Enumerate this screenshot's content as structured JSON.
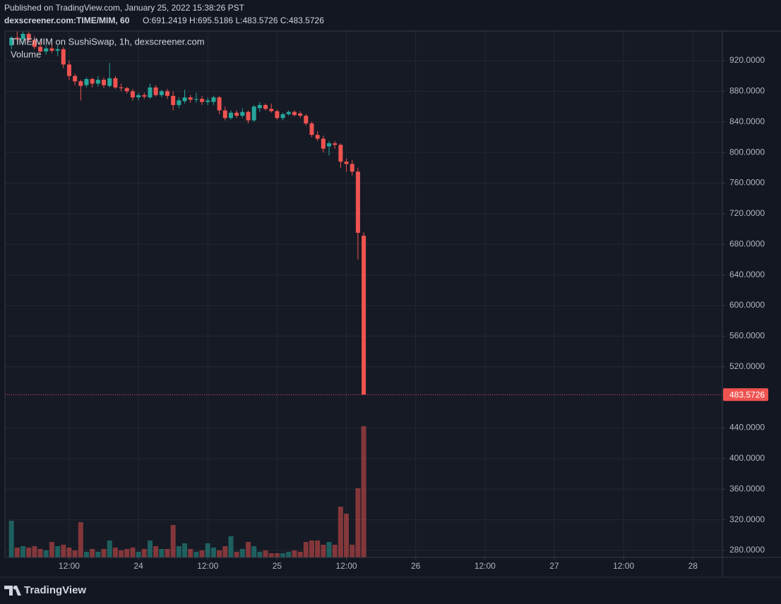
{
  "header": {
    "published": "Published on TradingView.com, January 25, 2022 15:38:26 PST",
    "symbol": "dexscreener.com:TIME/MIM, 60",
    "ohlc": "O:691.2419 H:695.5186 L:483.5726 C:483.5726"
  },
  "brand": "TradingView",
  "chart_data": {
    "type": "candlestick",
    "legend": [
      "TIME/MIM on SushiSwap, 1h, dexscreener.com",
      "Volume"
    ],
    "up_color": "#26a69a",
    "down_color": "#ef5350",
    "x": [
      2,
      3,
      4,
      5,
      6,
      7,
      8,
      9,
      10,
      11,
      12,
      13,
      14,
      15,
      16,
      17,
      18,
      19,
      20,
      21,
      22,
      23,
      24,
      25,
      26,
      27,
      28,
      29,
      30,
      31,
      32,
      33,
      34,
      35,
      36,
      37,
      38,
      39,
      40,
      41,
      42,
      43,
      44,
      45,
      46,
      47,
      48,
      49,
      50,
      51,
      52,
      53,
      54,
      55,
      56,
      57,
      58,
      59,
      60,
      61,
      62,
      63
    ],
    "open": [
      940,
      950,
      948,
      955,
      947,
      938,
      932,
      936,
      933,
      935,
      915,
      900,
      893,
      888,
      896,
      890,
      895,
      887,
      897,
      885,
      884,
      880,
      872,
      875,
      872,
      885,
      875,
      880,
      874,
      862,
      867,
      872,
      869,
      870,
      866,
      866,
      872,
      855,
      845,
      852,
      848,
      853,
      842,
      858,
      862,
      857,
      854,
      845,
      850,
      853,
      851,
      848,
      838,
      823,
      818,
      808,
      812,
      810,
      788,
      785,
      775,
      691.2419
    ],
    "high": [
      952,
      958,
      958,
      958,
      952,
      945,
      940,
      942,
      940,
      938,
      920,
      903,
      895,
      898,
      898,
      900,
      898,
      917,
      900,
      890,
      886,
      883,
      878,
      878,
      890,
      888,
      882,
      883,
      880,
      872,
      882,
      875,
      878,
      874,
      872,
      874,
      874,
      860,
      855,
      855,
      858,
      855,
      862,
      866,
      864,
      864,
      856,
      852,
      855,
      855,
      854,
      850,
      840,
      828,
      822,
      815,
      815,
      812,
      792,
      790,
      780,
      695.5186
    ],
    "low": [
      935,
      945,
      940,
      945,
      935,
      930,
      928,
      930,
      926,
      910,
      895,
      888,
      868,
      885,
      885,
      886,
      884,
      885,
      883,
      880,
      877,
      868,
      868,
      870,
      870,
      873,
      872,
      870,
      855,
      858,
      864,
      865,
      865,
      862,
      862,
      862,
      850,
      842,
      843,
      845,
      845,
      838,
      840,
      853,
      855,
      852,
      843,
      842,
      848,
      847,
      845,
      835,
      820,
      815,
      800,
      796,
      805,
      780,
      775,
      770,
      660,
      483.5726
    ],
    "close": [
      950,
      948,
      955,
      947,
      938,
      932,
      936,
      933,
      935,
      915,
      900,
      893,
      887,
      896,
      890,
      895,
      888,
      897,
      885,
      884,
      880,
      872,
      875,
      873,
      885,
      875,
      880,
      874,
      862,
      868,
      872,
      869,
      870,
      866,
      868,
      872,
      855,
      845,
      852,
      848,
      853,
      842,
      860,
      862,
      857,
      854,
      845,
      850,
      853,
      849,
      848,
      838,
      823,
      818,
      805,
      812,
      810,
      788,
      785,
      775,
      695,
      483.5726
    ],
    "volume": [
      26,
      7,
      8,
      7,
      8,
      6,
      5,
      11,
      8,
      9,
      7,
      5,
      25,
      4,
      6,
      4,
      6,
      12,
      7,
      5,
      6,
      7,
      4,
      6,
      12,
      8,
      6,
      6,
      23,
      8,
      10,
      6,
      4,
      5,
      10,
      7,
      5,
      8,
      15,
      4,
      6,
      11,
      8,
      4,
      5,
      3,
      3,
      3,
      4,
      5,
      4,
      11,
      12,
      12,
      9,
      11,
      9,
      36,
      31,
      9,
      49,
      93
    ],
    "volume_lim": [
      0,
      100
    ],
    "ylim": [
      270.8,
      958.7
    ],
    "yticks": [
      {
        "value": 280,
        "label": "280.0000"
      },
      {
        "value": 320,
        "label": "320.0000"
      },
      {
        "value": 360,
        "label": "360.0000"
      },
      {
        "value": 400,
        "label": "400.0000"
      },
      {
        "value": 440,
        "label": "440.0000"
      },
      {
        "value": 520,
        "label": "520.0000"
      },
      {
        "value": 560,
        "label": "560.0000"
      },
      {
        "value": 600,
        "label": "600.0000"
      },
      {
        "value": 640,
        "label": "640.0000"
      },
      {
        "value": 680,
        "label": "680.0000"
      },
      {
        "value": 720,
        "label": "720.0000"
      },
      {
        "value": 760,
        "label": "760.0000"
      },
      {
        "value": 800,
        "label": "800.0000"
      },
      {
        "value": 840,
        "label": "840.0000"
      },
      {
        "value": 880,
        "label": "880.0000"
      },
      {
        "value": 920,
        "label": "920.0000"
      }
    ],
    "xlim": [
      0.88,
      125.1
    ],
    "xticks": [
      {
        "value": 12,
        "label": "12:00"
      },
      {
        "value": 24,
        "label": "24"
      },
      {
        "value": 36,
        "label": "12:00"
      },
      {
        "value": 48,
        "label": "25"
      },
      {
        "value": 60,
        "label": "12:00"
      },
      {
        "value": 72,
        "label": "26"
      },
      {
        "value": 84,
        "label": "12:00"
      },
      {
        "value": 96,
        "label": "27"
      },
      {
        "value": 108,
        "label": "12:00"
      },
      {
        "value": 120,
        "label": "28"
      }
    ],
    "grid": true,
    "last_price_line": true
  }
}
